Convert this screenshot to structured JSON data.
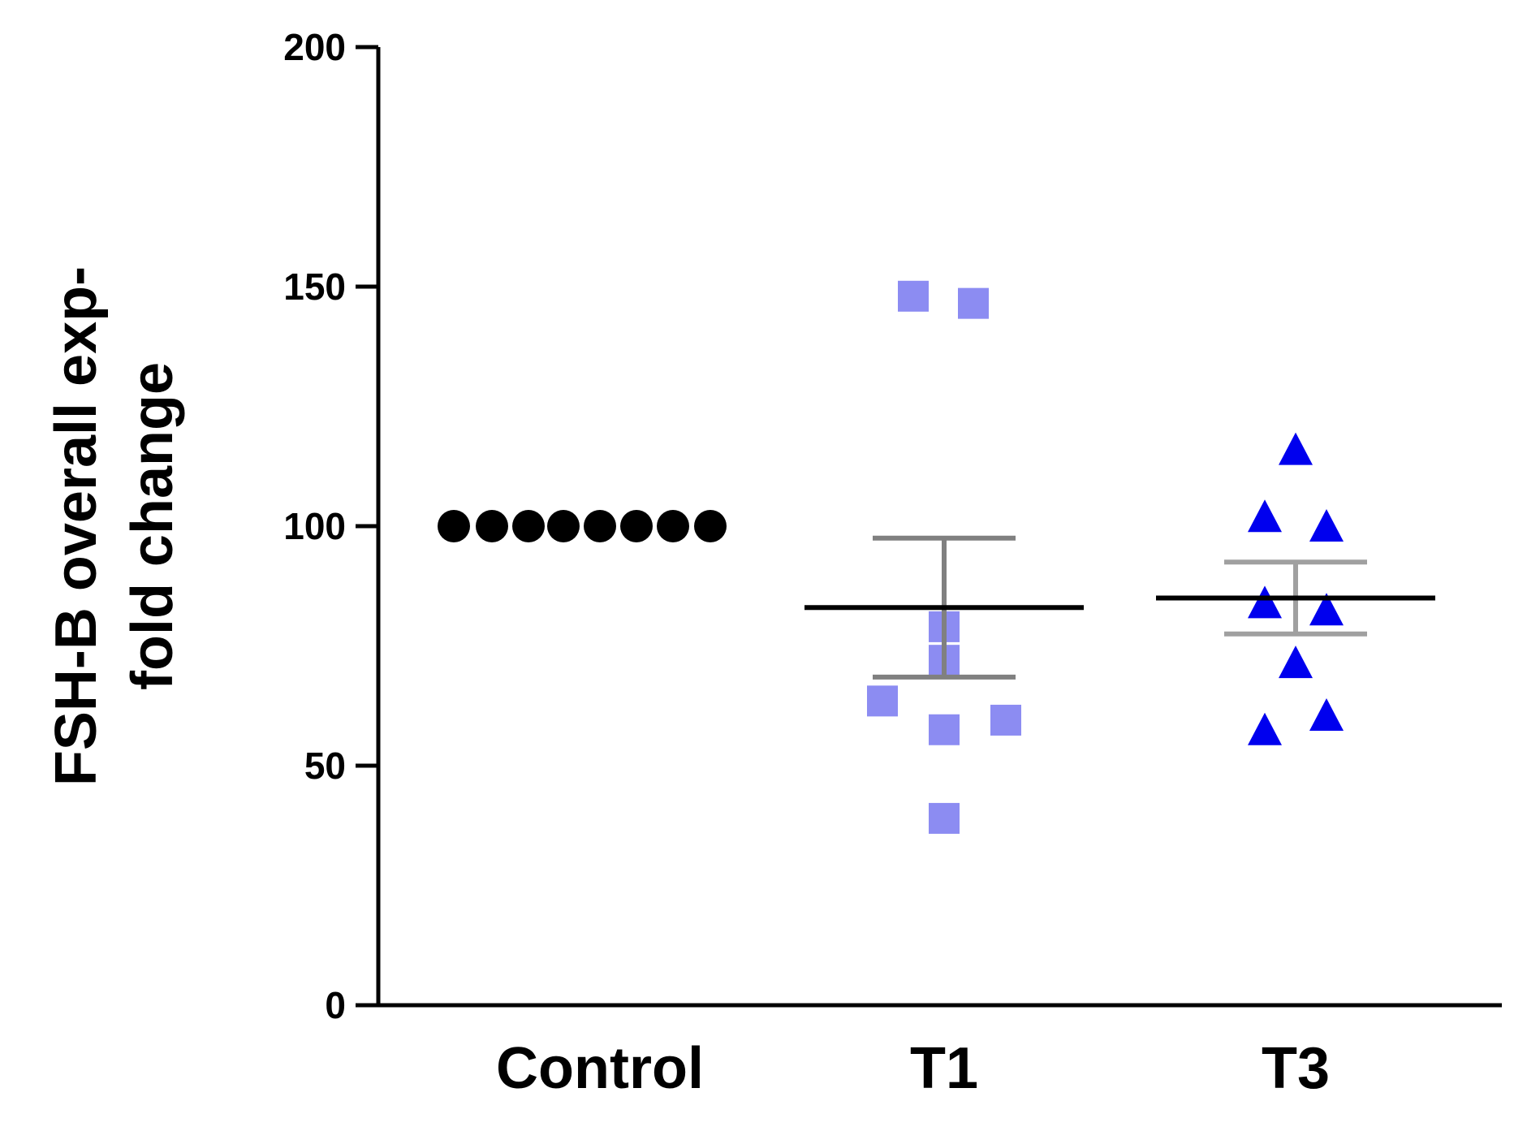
{
  "chart_data": {
    "type": "scatter",
    "title": "",
    "xlabel": "",
    "ylabel": [
      "FSH-B overall exp-",
      "fold change"
    ],
    "categories": [
      "Control",
      "T1",
      "T3"
    ],
    "ylim": [
      0,
      200
    ],
    "yticks": [
      0,
      50,
      100,
      150,
      200
    ],
    "grid": false,
    "series": [
      {
        "name": "Control",
        "marker": "circle",
        "color": "#000000",
        "values": [
          100,
          100,
          100,
          100,
          100,
          100,
          100,
          100
        ],
        "mean": 100,
        "sem": 0,
        "mean_color": "#000000",
        "error_color": "#000000"
      },
      {
        "name": "T1",
        "marker": "square",
        "color": "#8c8cf2",
        "values": [
          148,
          146.5,
          79,
          72,
          63.5,
          57.5,
          59.5,
          39
        ],
        "mean": 83,
        "sem": 14.5,
        "mean_color": "#000000",
        "error_color": "#808080"
      },
      {
        "name": "T3",
        "marker": "triangle",
        "color": "#0000ee",
        "values": [
          116,
          102,
          100,
          84,
          82.5,
          71.5,
          60.5,
          57.5
        ],
        "mean": 85,
        "sem": 7.5,
        "mean_color": "#000000",
        "error_color": "#a0a0a0"
      }
    ]
  }
}
